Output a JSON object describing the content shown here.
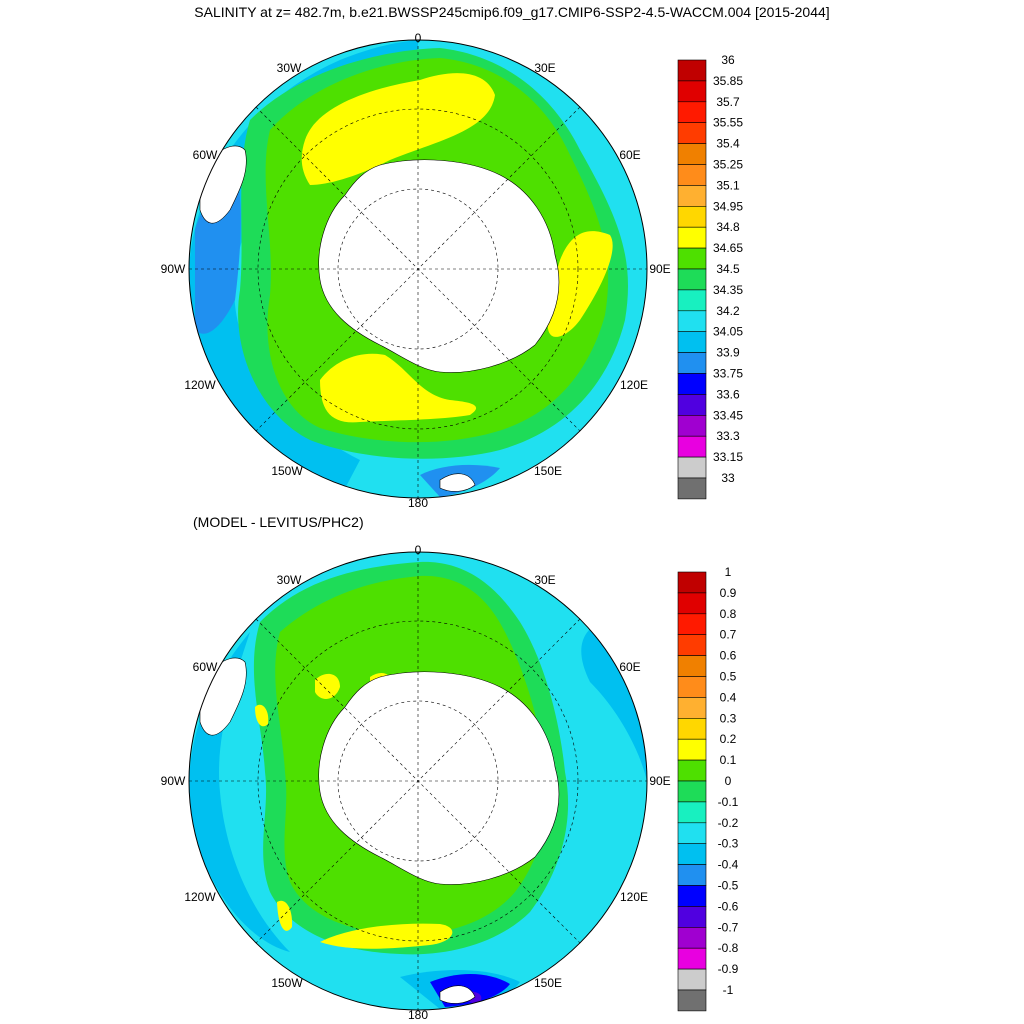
{
  "title": "SALINITY at z= 482.7m, b.e21.BWSSP245cmip6.f09_g17.CMIP6-SSP2-4.5-WACCM.004 [2015-2044]",
  "subtitle": "(MODEL - LEVITUS/PHC2)",
  "lon_labels": [
    "0",
    "30E",
    "60E",
    "90E",
    "120E",
    "150E",
    "180",
    "150W",
    "120W",
    "90W",
    "60W",
    "30W"
  ],
  "top_map": {
    "colorbar": {
      "levels": [
        "36",
        "35.85",
        "35.7",
        "35.55",
        "35.4",
        "35.25",
        "35.1",
        "34.95",
        "34.8",
        "34.65",
        "34.5",
        "34.35",
        "34.2",
        "34.05",
        "33.9",
        "33.75",
        "33.6",
        "33.45",
        "33.3",
        "33.15",
        "33"
      ],
      "colors": [
        "#c00000",
        "#e00000",
        "#ff1a00",
        "#ff3c00",
        "#f08000",
        "#ff8c1a",
        "#ffb030",
        "#ffd700",
        "#ffff00",
        "#4ee000",
        "#1edc58",
        "#18f0c0",
        "#20e0f0",
        "#00c0f0",
        "#2090f0",
        "#0000ff",
        "#5000e0",
        "#a000d0",
        "#e800e0",
        "#cccccc",
        "#707070"
      ]
    }
  },
  "bottom_map": {
    "colorbar": {
      "levels": [
        "1",
        "0.9",
        "0.8",
        "0.7",
        "0.6",
        "0.5",
        "0.4",
        "0.3",
        "0.2",
        "0.1",
        "0",
        "-0.1",
        "-0.2",
        "-0.3",
        "-0.4",
        "-0.5",
        "-0.6",
        "-0.7",
        "-0.8",
        "-0.9",
        "-1"
      ],
      "colors": [
        "#c00000",
        "#e00000",
        "#ff1a00",
        "#ff3c00",
        "#f08000",
        "#ff8c1a",
        "#ffb030",
        "#ffd700",
        "#ffff00",
        "#4ee000",
        "#1edc58",
        "#18f0c0",
        "#20e0f0",
        "#00c0f0",
        "#2090f0",
        "#0000ff",
        "#5000e0",
        "#a000d0",
        "#e800e0",
        "#cccccc",
        "#707070"
      ]
    }
  }
}
